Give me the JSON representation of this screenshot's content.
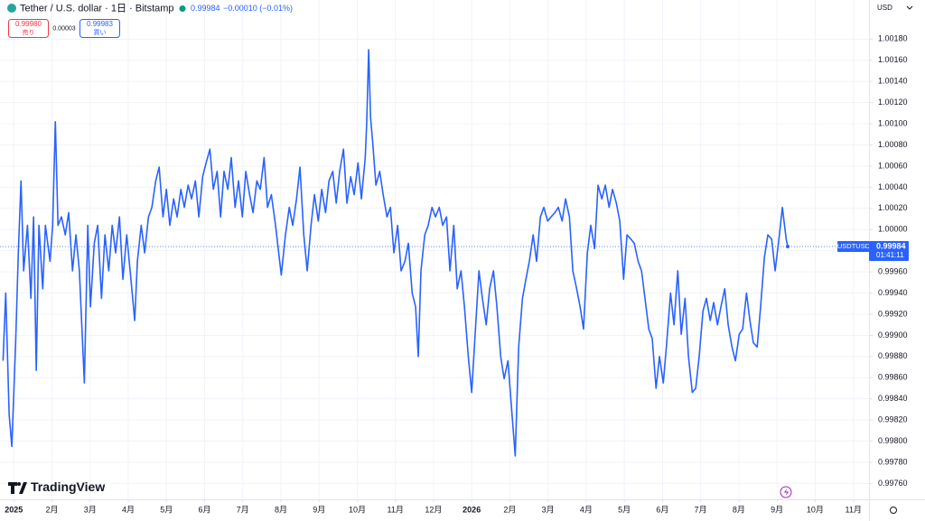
{
  "chart_data": {
    "type": "line",
    "title": "Tether / U.S. dollar · 1日 · Bitstamp",
    "last_price": 0.99984,
    "last_price_label": "0.99984",
    "change_label": "−0.00010 (−0.01%)",
    "sell": {
      "value": "0.99980",
      "label": "売り"
    },
    "spread": "0.00003",
    "buy": {
      "value": "0.99983",
      "label": "買い"
    },
    "currency": "USD",
    "countdown": "01:41:11",
    "logo": "TradingView",
    "grid": true,
    "xlim": [
      -0.36,
      22.41
    ],
    "ylim": [
      0.99745,
      1.00217
    ],
    "xticks": [
      {
        "value": 0,
        "label": "2025"
      },
      {
        "value": 1,
        "label": "2月"
      },
      {
        "value": 2,
        "label": "3月"
      },
      {
        "value": 3,
        "label": "4月"
      },
      {
        "value": 4,
        "label": "5月"
      },
      {
        "value": 5,
        "label": "6月"
      },
      {
        "value": 6,
        "label": "7月"
      },
      {
        "value": 7,
        "label": "8月"
      },
      {
        "value": 8,
        "label": "9月"
      },
      {
        "value": 9,
        "label": "10月"
      },
      {
        "value": 10,
        "label": "11月"
      },
      {
        "value": 11,
        "label": "12月"
      },
      {
        "value": 12,
        "label": "2026"
      },
      {
        "value": 13,
        "label": "2月"
      },
      {
        "value": 14,
        "label": "3月"
      },
      {
        "value": 15,
        "label": "4月"
      },
      {
        "value": 16,
        "label": "5月"
      },
      {
        "value": 17,
        "label": "6月"
      },
      {
        "value": 18,
        "label": "7月"
      },
      {
        "value": 19,
        "label": "8月"
      },
      {
        "value": 20,
        "label": "9月"
      },
      {
        "value": 21,
        "label": "10月"
      },
      {
        "value": 22,
        "label": "11月"
      }
    ],
    "yticks": [
      {
        "value": 0.9976,
        "label": "0.99760"
      },
      {
        "value": 0.9978,
        "label": "0.99780"
      },
      {
        "value": 0.998,
        "label": "0.99800"
      },
      {
        "value": 0.9982,
        "label": "0.99820"
      },
      {
        "value": 0.9984,
        "label": "0.99840"
      },
      {
        "value": 0.9986,
        "label": "0.99860"
      },
      {
        "value": 0.9988,
        "label": "0.99880"
      },
      {
        "value": 0.999,
        "label": "0.99900"
      },
      {
        "value": 0.9992,
        "label": "0.99920"
      },
      {
        "value": 0.9994,
        "label": "0.99940"
      },
      {
        "value": 0.9996,
        "label": "0.99960"
      },
      {
        "value": 0.9998,
        "label": "0.99980"
      },
      {
        "value": 1.0,
        "label": "1.00000"
      },
      {
        "value": 1.0002,
        "label": "1.00020"
      },
      {
        "value": 1.0004,
        "label": "1.00040"
      },
      {
        "value": 1.0006,
        "label": "1.00060"
      },
      {
        "value": 1.0008,
        "label": "1.00080"
      },
      {
        "value": 1.001,
        "label": "1.00100"
      },
      {
        "value": 1.0012,
        "label": "1.00120"
      },
      {
        "value": 1.0014,
        "label": "1.00140"
      },
      {
        "value": 1.0016,
        "label": "1.00160"
      },
      {
        "value": 1.0018,
        "label": "1.00180"
      }
    ],
    "series": [
      {
        "name": "USDTUSD",
        "color": "#2962ff",
        "x": [
          -0.28,
          -0.21,
          -0.12,
          -0.05,
          0.05,
          0.12,
          0.19,
          0.26,
          0.36,
          0.45,
          0.52,
          0.59,
          0.66,
          0.76,
          0.83,
          0.95,
          1.02,
          1.09,
          1.16,
          1.25,
          1.35,
          1.44,
          1.54,
          1.63,
          1.72,
          1.85,
          1.94,
          2.01,
          2.11,
          2.2,
          2.3,
          2.39,
          2.49,
          2.58,
          2.67,
          2.77,
          2.86,
          2.96,
          3.05,
          3.17,
          3.24,
          3.34,
          3.43,
          3.53,
          3.62,
          3.72,
          3.81,
          3.91,
          4.0,
          4.09,
          4.19,
          4.28,
          4.38,
          4.47,
          4.57,
          4.66,
          4.76,
          4.85,
          4.95,
          5.04,
          5.14,
          5.23,
          5.33,
          5.42,
          5.51,
          5.61,
          5.7,
          5.8,
          5.89,
          5.99,
          6.08,
          6.18,
          6.27,
          6.37,
          6.46,
          6.56,
          6.65,
          6.75,
          6.86,
          7.01,
          7.12,
          7.22,
          7.31,
          7.41,
          7.5,
          7.6,
          7.69,
          7.79,
          7.88,
          7.98,
          8.07,
          8.17,
          8.26,
          8.36,
          8.45,
          8.54,
          8.64,
          8.73,
          8.83,
          8.92,
          9.02,
          9.11,
          9.21,
          9.25,
          9.3,
          9.35,
          9.4,
          9.49,
          9.59,
          9.68,
          9.78,
          9.87,
          9.96,
          10.06,
          10.15,
          10.25,
          10.34,
          10.44,
          10.53,
          10.6,
          10.67,
          10.77,
          10.86,
          10.96,
          11.05,
          11.15,
          11.24,
          11.34,
          11.43,
          11.53,
          11.62,
          11.72,
          11.81,
          11.91,
          12.0,
          12.09,
          12.19,
          12.28,
          12.38,
          12.47,
          12.57,
          12.66,
          12.76,
          12.85,
          12.95,
          13.04,
          13.14,
          13.23,
          13.33,
          13.42,
          13.51,
          13.61,
          13.7,
          13.8,
          13.89,
          13.99,
          14.08,
          14.18,
          14.27,
          14.37,
          14.46,
          14.56,
          14.65,
          14.75,
          14.84,
          14.93,
          15.03,
          15.12,
          15.22,
          15.31,
          15.41,
          15.5,
          15.6,
          15.69,
          15.79,
          15.88,
          15.98,
          16.07,
          16.17,
          16.26,
          16.36,
          16.45,
          16.54,
          16.64,
          16.73,
          16.83,
          16.92,
          17.02,
          17.11,
          17.21,
          17.3,
          17.4,
          17.49,
          17.59,
          17.68,
          17.78,
          17.87,
          17.96,
          18.06,
          18.15,
          18.25,
          18.34,
          18.44,
          18.53,
          18.63,
          18.72,
          18.82,
          18.91,
          19.01,
          19.1,
          19.2,
          19.29,
          19.38,
          19.48,
          19.57,
          19.67,
          19.76,
          19.86,
          19.95,
          20.05,
          20.14,
          20.24,
          20.28
        ],
        "values": [
          0.99876,
          0.9994,
          0.99825,
          0.99795,
          0.99893,
          0.99978,
          1.00046,
          0.99961,
          1.00004,
          0.99935,
          1.00012,
          0.99867,
          1.00004,
          0.99944,
          1.00004,
          0.9997,
          1.00004,
          1.00102,
          1.00004,
          1.00012,
          0.99995,
          1.00016,
          0.99961,
          0.99995,
          0.99961,
          0.99855,
          1.00004,
          0.99927,
          0.99987,
          1.00004,
          0.99935,
          0.99995,
          0.99961,
          1.00004,
          0.99978,
          1.00012,
          0.99953,
          0.99995,
          0.99961,
          0.99914,
          0.9997,
          1.00004,
          0.99978,
          1.00012,
          1.00021,
          1.00046,
          1.00059,
          1.00012,
          1.00038,
          1.00004,
          1.00029,
          1.00012,
          1.00038,
          1.00021,
          1.00042,
          1.00029,
          1.00046,
          1.00012,
          1.0005,
          1.00063,
          1.00076,
          1.00038,
          1.00055,
          1.00012,
          1.00055,
          1.00038,
          1.00068,
          1.00021,
          1.00046,
          1.00012,
          1.00055,
          1.00033,
          1.00016,
          1.00046,
          1.00038,
          1.00068,
          1.00021,
          1.00033,
          1.00004,
          0.99957,
          0.99995,
          1.00021,
          1.00004,
          1.00029,
          1.00059,
          0.99995,
          0.99961,
          1.00004,
          1.00033,
          1.00008,
          1.00038,
          1.00016,
          1.00046,
          1.00055,
          1.00025,
          1.00055,
          1.00076,
          1.00025,
          1.0005,
          1.00033,
          1.00063,
          1.00029,
          1.00068,
          1.00102,
          1.0017,
          1.00106,
          1.00085,
          1.00042,
          1.00055,
          1.00033,
          1.00012,
          1.00021,
          0.99978,
          1.00004,
          0.99961,
          0.9997,
          0.99987,
          0.9994,
          0.99927,
          0.9988,
          0.99961,
          0.99995,
          1.00004,
          1.00021,
          1.00012,
          1.00021,
          1.00004,
          1.00012,
          0.99961,
          1.00004,
          0.99944,
          0.99961,
          0.99927,
          0.9988,
          0.99846,
          0.99901,
          0.99961,
          0.99935,
          0.9991,
          0.99944,
          0.99961,
          0.99927,
          0.9988,
          0.99859,
          0.99876,
          0.99833,
          0.99786,
          0.99889,
          0.99935,
          0.99953,
          0.9997,
          0.99995,
          0.9997,
          1.00012,
          1.00021,
          1.00008,
          1.00012,
          1.00016,
          1.00021,
          1.00008,
          1.00029,
          1.00012,
          0.99961,
          0.99944,
          0.99927,
          0.99906,
          0.99978,
          1.00004,
          0.99982,
          1.00042,
          1.00029,
          1.00042,
          1.00021,
          1.00038,
          1.00025,
          1.00008,
          0.99953,
          0.99995,
          0.99991,
          0.99987,
          0.9997,
          0.99961,
          0.99935,
          0.99906,
          0.99897,
          0.9985,
          0.9988,
          0.99855,
          0.99893,
          0.9994,
          0.9991,
          0.99961,
          0.99901,
          0.99935,
          0.9988,
          0.99846,
          0.9985,
          0.9988,
          0.99923,
          0.99935,
          0.99914,
          0.99931,
          0.9991,
          0.99927,
          0.99944,
          0.9991,
          0.99889,
          0.99876,
          0.99901,
          0.99906,
          0.9994,
          0.99914,
          0.99893,
          0.99889,
          0.99927,
          0.99974,
          0.99995,
          0.99991,
          0.99961,
          0.99991,
          1.00021,
          0.99991,
          0.99984
        ]
      }
    ]
  }
}
